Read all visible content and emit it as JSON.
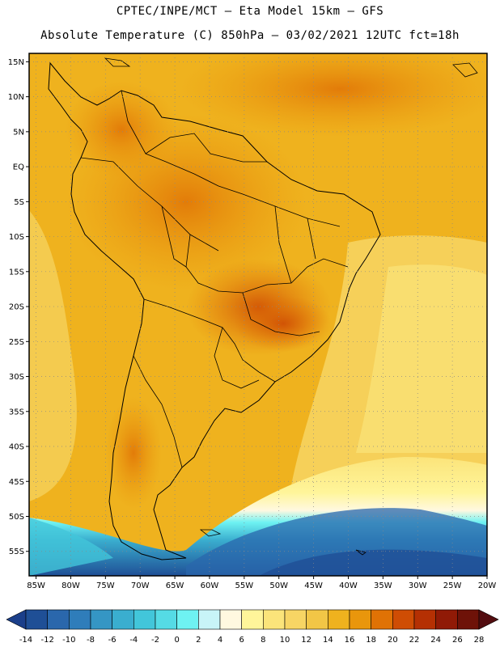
{
  "title_line1": "CPTEC/INPE/MCT –  Eta Model 15km – GFS",
  "title_line2": "Absolute Temperature (C) 850hPa – 03/02/2021 12UTC fct=18h",
  "lat_labels": [
    "15N",
    "10N",
    "5N",
    "EQ",
    "5S",
    "10S",
    "15S",
    "20S",
    "25S",
    "30S",
    "35S",
    "40S",
    "45S",
    "50S",
    "55S"
  ],
  "lon_labels": [
    "85W",
    "80W",
    "75W",
    "70W",
    "65W",
    "60W",
    "55W",
    "50W",
    "45W",
    "40W",
    "35W",
    "30W",
    "25W",
    "20W"
  ],
  "colorbar": {
    "ticks": [
      "-14",
      "-12",
      "-10",
      "-8",
      "-6",
      "-4",
      "-2",
      "0",
      "2",
      "4",
      "6",
      "8",
      "10",
      "12",
      "14",
      "16",
      "18",
      "20",
      "22",
      "24",
      "26",
      "28"
    ],
    "colors": [
      "#1b3f8a",
      "#1f4f96",
      "#2a67ac",
      "#2f7dba",
      "#3596c4",
      "#3aaecf",
      "#42c6da",
      "#55dbe5",
      "#6ef2f2",
      "#c8f4f8",
      "#fff8e0",
      "#fff59a",
      "#fbe47a",
      "#f7d564",
      "#f2c646",
      "#efb21e",
      "#e9960c",
      "#e07205",
      "#cf4d04",
      "#b53003",
      "#901a06",
      "#6e1208",
      "#530d10"
    ]
  },
  "colors": {
    "land_border": "#000000",
    "grid_dots": "#888888"
  }
}
